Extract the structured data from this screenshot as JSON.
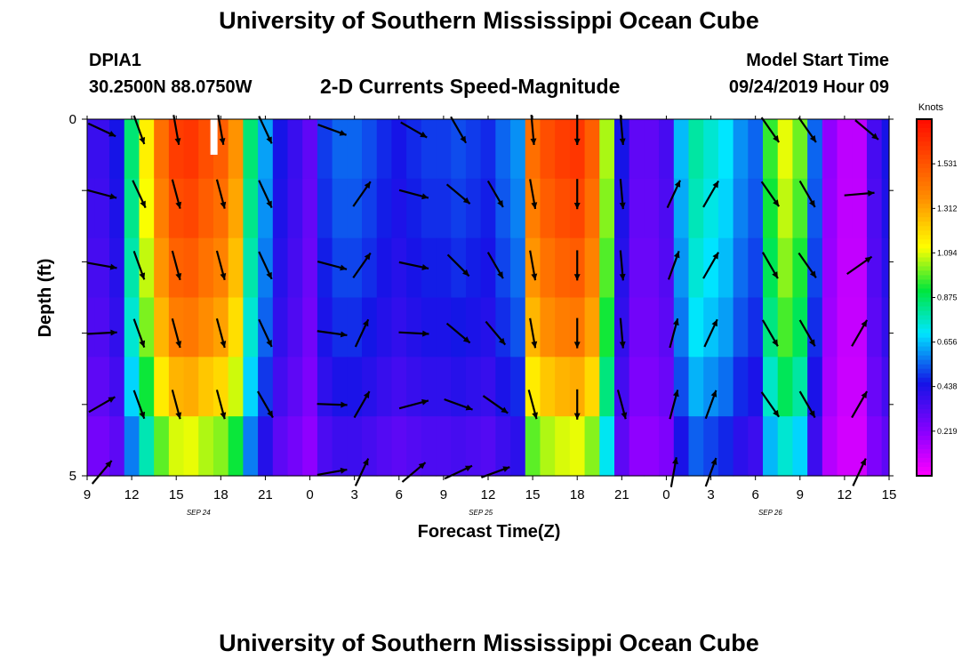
{
  "header": {
    "title": "University of Southern Mississippi Ocean Cube",
    "station": "DPIA1",
    "coords": "30.2500N 88.0750W",
    "subtitle": "2-D Currents Speed-Magnitude",
    "model_start_label": "Model Start Time",
    "model_start_value": "09/24/2019 Hour 09"
  },
  "footer": {
    "title": "University of Southern Mississippi Ocean Cube"
  },
  "chart_data": {
    "type": "heatmap",
    "title": "2-D Currents Speed-Magnitude",
    "xlabel": "Forecast Time(Z)",
    "ylabel": "Depth (ft)",
    "x_hours_range": [
      0,
      54
    ],
    "y_range": [
      0,
      5
    ],
    "x_ticks": [
      {
        "hour": 0,
        "label": "9"
      },
      {
        "hour": 3,
        "label": "12"
      },
      {
        "hour": 6,
        "label": "15"
      },
      {
        "hour": 9,
        "label": "18"
      },
      {
        "hour": 12,
        "label": "21"
      },
      {
        "hour": 15,
        "label": "0"
      },
      {
        "hour": 18,
        "label": "3"
      },
      {
        "hour": 21,
        "label": "6"
      },
      {
        "hour": 24,
        "label": "9"
      },
      {
        "hour": 27,
        "label": "12"
      },
      {
        "hour": 30,
        "label": "15"
      },
      {
        "hour": 33,
        "label": "18"
      },
      {
        "hour": 36,
        "label": "21"
      },
      {
        "hour": 39,
        "label": "0"
      },
      {
        "hour": 42,
        "label": "3"
      },
      {
        "hour": 45,
        "label": "6"
      },
      {
        "hour": 48,
        "label": "9"
      },
      {
        "hour": 51,
        "label": "12"
      },
      {
        "hour": 54,
        "label": "15"
      }
    ],
    "y_ticks": [
      {
        "depth": 0,
        "label": "0"
      },
      {
        "depth": 5,
        "label": "5"
      }
    ],
    "date_labels": [
      {
        "hour": 7.5,
        "label": "SEP 24"
      },
      {
        "hour": 26.5,
        "label": "SEP 25"
      },
      {
        "hour": 46,
        "label": "SEP 26"
      }
    ],
    "colorbar": {
      "unit": "Knots",
      "min": 0,
      "max": 1.75,
      "ticks": [
        "1.531",
        "1.312",
        "1.094",
        "0.875",
        "0.656",
        "0.438",
        "0.219"
      ]
    },
    "hours": [
      0,
      1,
      2,
      3,
      4,
      5,
      6,
      7,
      8,
      9,
      10,
      11,
      12,
      13,
      14,
      15,
      16,
      17,
      18,
      19,
      20,
      21,
      22,
      23,
      24,
      25,
      26,
      27,
      28,
      29,
      30,
      31,
      32,
      33,
      34,
      35,
      36,
      37,
      38,
      39,
      40,
      41,
      42,
      43,
      44,
      45,
      46,
      47,
      48,
      49,
      50,
      51,
      52,
      53,
      54
    ],
    "profile": [
      0.38,
      0.38,
      0.45,
      0.85,
      1.15,
      1.45,
      1.6,
      1.62,
      1.55,
      1.5,
      1.35,
      0.85,
      0.62,
      0.45,
      0.38,
      0.3,
      0.5,
      0.55,
      0.55,
      0.52,
      0.48,
      0.45,
      0.48,
      0.5,
      0.5,
      0.52,
      0.5,
      0.48,
      0.55,
      0.6,
      1.45,
      1.55,
      1.6,
      1.62,
      1.5,
      1.05,
      0.45,
      0.3,
      0.3,
      0.35,
      0.65,
      0.8,
      0.75,
      0.7,
      0.6,
      0.55,
      0.95,
      1.1,
      1.0,
      0.55,
      0.2,
      0.12,
      0.12,
      0.35,
      0.45
    ],
    "depth_factor": [
      1.0,
      0.97,
      0.93,
      0.88,
      0.8,
      0.68
    ],
    "arrows": [
      {
        "h": 1,
        "d": 0.15,
        "a": 25
      },
      {
        "h": 3.5,
        "d": 0.15,
        "a": 70
      },
      {
        "h": 6,
        "d": 0.15,
        "a": 80
      },
      {
        "h": 9,
        "d": 0.15,
        "a": 80
      },
      {
        "h": 12,
        "d": 0.15,
        "a": 65
      },
      {
        "h": 16.5,
        "d": 0.15,
        "a": 20
      },
      {
        "h": 22,
        "d": 0.15,
        "a": 30
      },
      {
        "h": 25,
        "d": 0.15,
        "a": 60
      },
      {
        "h": 30,
        "d": 0.15,
        "a": 85
      },
      {
        "h": 33,
        "d": 0.15,
        "a": 90
      },
      {
        "h": 36,
        "d": 0.15,
        "a": 85
      },
      {
        "h": 46,
        "d": 0.15,
        "a": 55
      },
      {
        "h": 48.5,
        "d": 0.15,
        "a": 55
      },
      {
        "h": 52.5,
        "d": 0.15,
        "a": 40
      },
      {
        "h": 1,
        "d": 1.05,
        "a": 15
      },
      {
        "h": 3.5,
        "d": 1.05,
        "a": 65
      },
      {
        "h": 6,
        "d": 1.05,
        "a": 75
      },
      {
        "h": 9,
        "d": 1.05,
        "a": 75
      },
      {
        "h": 12,
        "d": 1.05,
        "a": 65
      },
      {
        "h": 18.5,
        "d": 1.05,
        "a": -55
      },
      {
        "h": 22,
        "d": 1.05,
        "a": 15
      },
      {
        "h": 25,
        "d": 1.05,
        "a": 40
      },
      {
        "h": 27.5,
        "d": 1.05,
        "a": 60
      },
      {
        "h": 30,
        "d": 1.05,
        "a": 80
      },
      {
        "h": 33,
        "d": 1.05,
        "a": 90
      },
      {
        "h": 36,
        "d": 1.05,
        "a": 85
      },
      {
        "h": 39.5,
        "d": 1.05,
        "a": -65
      },
      {
        "h": 42,
        "d": 1.05,
        "a": -60
      },
      {
        "h": 46,
        "d": 1.05,
        "a": 55
      },
      {
        "h": 48.5,
        "d": 1.05,
        "a": 60
      },
      {
        "h": 52,
        "d": 1.05,
        "a": -5
      },
      {
        "h": 1,
        "d": 2.05,
        "a": 10
      },
      {
        "h": 3.5,
        "d": 2.05,
        "a": 70
      },
      {
        "h": 6,
        "d": 2.05,
        "a": 75
      },
      {
        "h": 9,
        "d": 2.05,
        "a": 75
      },
      {
        "h": 12,
        "d": 2.05,
        "a": 65
      },
      {
        "h": 16.5,
        "d": 2.05,
        "a": 15
      },
      {
        "h": 18.5,
        "d": 2.05,
        "a": -55
      },
      {
        "h": 22,
        "d": 2.05,
        "a": 12
      },
      {
        "h": 25,
        "d": 2.05,
        "a": 45
      },
      {
        "h": 27.5,
        "d": 2.05,
        "a": 60
      },
      {
        "h": 30,
        "d": 2.05,
        "a": 80
      },
      {
        "h": 33,
        "d": 2.05,
        "a": 90
      },
      {
        "h": 36,
        "d": 2.05,
        "a": 85
      },
      {
        "h": 39.5,
        "d": 2.05,
        "a": -70
      },
      {
        "h": 42,
        "d": 2.05,
        "a": -60
      },
      {
        "h": 46,
        "d": 2.05,
        "a": 60
      },
      {
        "h": 48.5,
        "d": 2.05,
        "a": 55
      },
      {
        "h": 52,
        "d": 2.05,
        "a": -35
      },
      {
        "h": 1,
        "d": 3.0,
        "a": -3
      },
      {
        "h": 3.5,
        "d": 3.0,
        "a": 70
      },
      {
        "h": 6,
        "d": 3.0,
        "a": 75
      },
      {
        "h": 9,
        "d": 3.0,
        "a": 75
      },
      {
        "h": 12,
        "d": 3.0,
        "a": 65
      },
      {
        "h": 16.5,
        "d": 3.0,
        "a": 8
      },
      {
        "h": 18.5,
        "d": 3.0,
        "a": -65
      },
      {
        "h": 22,
        "d": 3.0,
        "a": 3
      },
      {
        "h": 25,
        "d": 3.0,
        "a": 40
      },
      {
        "h": 27.5,
        "d": 3.0,
        "a": 50
      },
      {
        "h": 30,
        "d": 3.0,
        "a": 80
      },
      {
        "h": 33,
        "d": 3.0,
        "a": 90
      },
      {
        "h": 36,
        "d": 3.0,
        "a": 85
      },
      {
        "h": 39.5,
        "d": 3.0,
        "a": -75
      },
      {
        "h": 42,
        "d": 3.0,
        "a": -65
      },
      {
        "h": 46,
        "d": 3.0,
        "a": 60
      },
      {
        "h": 48.5,
        "d": 3.0,
        "a": 60
      },
      {
        "h": 52,
        "d": 3.0,
        "a": -60
      },
      {
        "h": 1,
        "d": 4.0,
        "a": -30
      },
      {
        "h": 3.5,
        "d": 4.0,
        "a": 70
      },
      {
        "h": 6,
        "d": 4.0,
        "a": 75
      },
      {
        "h": 9,
        "d": 4.0,
        "a": 75
      },
      {
        "h": 12,
        "d": 4.0,
        "a": 60
      },
      {
        "h": 16.5,
        "d": 4.0,
        "a": 2
      },
      {
        "h": 18.5,
        "d": 4.0,
        "a": -60
      },
      {
        "h": 22,
        "d": 4.0,
        "a": -15
      },
      {
        "h": 25,
        "d": 4.0,
        "a": 20
      },
      {
        "h": 27.5,
        "d": 4.0,
        "a": 35
      },
      {
        "h": 30,
        "d": 4.0,
        "a": 75
      },
      {
        "h": 33,
        "d": 4.0,
        "a": 90
      },
      {
        "h": 36,
        "d": 4.0,
        "a": 75
      },
      {
        "h": 39.5,
        "d": 4.0,
        "a": -75
      },
      {
        "h": 42,
        "d": 4.0,
        "a": -70
      },
      {
        "h": 46,
        "d": 4.0,
        "a": 55
      },
      {
        "h": 48.5,
        "d": 4.0,
        "a": 60
      },
      {
        "h": 52,
        "d": 4.0,
        "a": -60
      },
      {
        "h": 1,
        "d": 4.95,
        "a": -50
      },
      {
        "h": 16.5,
        "d": 4.95,
        "a": -10
      },
      {
        "h": 18.5,
        "d": 4.95,
        "a": -65
      },
      {
        "h": 22,
        "d": 4.95,
        "a": -40
      },
      {
        "h": 25,
        "d": 4.95,
        "a": -25
      },
      {
        "h": 27.5,
        "d": 4.95,
        "a": -20
      },
      {
        "h": 39.5,
        "d": 4.95,
        "a": -80
      },
      {
        "h": 42,
        "d": 4.95,
        "a": -70
      },
      {
        "h": 52,
        "d": 4.95,
        "a": -65
      }
    ]
  }
}
